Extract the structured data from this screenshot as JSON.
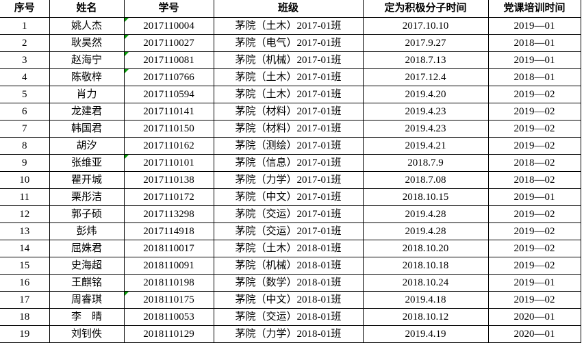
{
  "colors": {
    "border": "#000000",
    "text": "#000000",
    "background": "#ffffff",
    "error_indicator_green": "#089b08"
  },
  "table": {
    "columns": [
      "序号",
      "姓名",
      "学号",
      "班级",
      "定为积极分子时间",
      "党课培训时间"
    ],
    "rows": [
      {
        "no": "1",
        "name": "姚人杰",
        "id": "2017110004",
        "class": "茅院（土木）2017-01班",
        "activist_date": "2017.10.10",
        "training": "2019—01",
        "flag": true
      },
      {
        "no": "2",
        "name": "耿昊然",
        "id": "2017110027",
        "class": "茅院（电气）2017-01班",
        "activist_date": "2017.9.27",
        "training": "2018—01",
        "flag": true
      },
      {
        "no": "3",
        "name": "赵海宁",
        "id": "2017110081",
        "class": "茅院（机械）2017-01班",
        "activist_date": "2018.7.13",
        "training": "2019—01",
        "flag": true
      },
      {
        "no": "4",
        "name": "陈敬梓",
        "id": "2017110766",
        "class": "茅院（土木）2017-01班",
        "activist_date": "2017.12.4",
        "training": "2018—01",
        "flag": true
      },
      {
        "no": "5",
        "name": "肖力",
        "id": "2017110594",
        "class": "茅院（土木）2017-01班",
        "activist_date": "2019.4.20",
        "training": "2019—02",
        "flag": false
      },
      {
        "no": "6",
        "name": "龙建君",
        "id": "2017110141",
        "class": "茅院（材料）2017-01班",
        "activist_date": "2019.4.23",
        "training": "2019—02",
        "flag": false
      },
      {
        "no": "7",
        "name": "韩国君",
        "id": "2017110150",
        "class": "茅院（材料）2017-01班",
        "activist_date": "2019.4.23",
        "training": "2019—02",
        "flag": false
      },
      {
        "no": "8",
        "name": "胡汐",
        "id": "2017110162",
        "class": "茅院（测绘）2017-01班",
        "activist_date": "2019.4.21",
        "training": "2019—02",
        "flag": false
      },
      {
        "no": "9",
        "name": "张维亚",
        "id": "2017110101",
        "class": "茅院（信息）2017-01班",
        "activist_date": "2018.7.9",
        "training": "2018—02",
        "flag": true
      },
      {
        "no": "10",
        "name": "瞿开城",
        "id": "2017110138",
        "class": "茅院（力学）2017-01班",
        "activist_date": "2018.7.08",
        "training": "2018—02",
        "flag": false
      },
      {
        "no": "11",
        "name": "栗彤洁",
        "id": "2017110172",
        "class": "茅院（中文）2017-01班",
        "activist_date": "2018.10.15",
        "training": "2019—01",
        "flag": false
      },
      {
        "no": "12",
        "name": "郭子硕",
        "id": "2017113298",
        "class": "茅院（交运）2017-01班",
        "activist_date": "2019.4.28",
        "training": "2019—02",
        "flag": false
      },
      {
        "no": "13",
        "name": "彭炜",
        "id": "2017114918",
        "class": "茅院（交运）2017-01班",
        "activist_date": "2019.4.28",
        "training": "2019—02",
        "flag": false
      },
      {
        "no": "14",
        "name": "屈姝君",
        "id": "2018110017",
        "class": "茅院（土木）2018-01班",
        "activist_date": "2018.10.20",
        "training": "2019—02",
        "flag": false
      },
      {
        "no": "15",
        "name": "史海超",
        "id": "2018110091",
        "class": "茅院（机械）2018-01班",
        "activist_date": "2018.10.18",
        "training": "2019—02",
        "flag": false
      },
      {
        "no": "16",
        "name": "王麒铭",
        "id": "2018110198",
        "class": "茅院（数学）2018-01班",
        "activist_date": "2018.10.24",
        "training": "2019—01",
        "flag": false
      },
      {
        "no": "17",
        "name": "周睿琪",
        "id": "2018110175",
        "class": "茅院（中文）2018-01班",
        "activist_date": "2019.4.18",
        "training": "2019—02",
        "flag": true
      },
      {
        "no": "18",
        "name": "李　晴",
        "id": "2018110053",
        "class": "茅院（交运）2018-01班",
        "activist_date": "2018.10.12",
        "training": "2020—01",
        "flag": false
      },
      {
        "no": "19",
        "name": "刘钊佚",
        "id": "2018110129",
        "class": "茅院（力学）2018-01班",
        "activist_date": "2019.4.19",
        "training": "2020—01",
        "flag": false
      }
    ]
  }
}
